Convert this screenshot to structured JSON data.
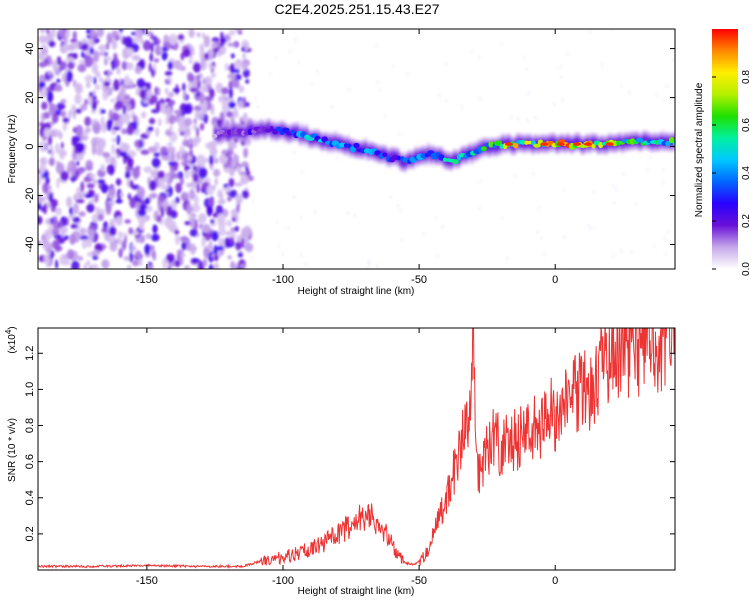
{
  "chart_data": [
    {
      "type": "heatmap",
      "title": "C2E4.2025.251.15.43.E27",
      "xlabel": "Height of straight line (km)",
      "ylabel": "Frequency (Hz)",
      "xlim": [
        -190,
        44
      ],
      "ylim": [
        -50,
        48
      ],
      "xticks": [
        -150,
        -100,
        -50,
        0
      ],
      "yticks": [
        -40,
        -20,
        0,
        20,
        40
      ],
      "colorbar": {
        "label": "Normalized spectral amplitude",
        "range": [
          0.0,
          1.0
        ],
        "ticks": [
          "0.0",
          "0.2",
          "0.4",
          "0.6",
          "0.8"
        ],
        "tick_values": [
          0.0,
          0.2,
          0.4,
          0.6,
          0.8
        ],
        "colors": [
          "#ffffff",
          "#c6a8ea",
          "#6a12d8",
          "#2a00ff",
          "#0066ff",
          "#00c8ff",
          "#00f0a0",
          "#1fe000",
          "#b4f000",
          "#ffee00",
          "#ff8800",
          "#ff0000"
        ]
      },
      "ridge": {
        "height_km": [
          -125,
          -115,
          -105,
          -98,
          -90,
          -80,
          -70,
          -62,
          -55,
          -50,
          -45,
          -40,
          -35,
          -30,
          -25,
          -18,
          -10,
          0,
          10,
          20,
          30,
          44
        ],
        "frequency_hz": [
          5,
          6,
          7,
          6,
          4,
          1,
          -1,
          -4,
          -6,
          -4,
          -3,
          -6,
          -5,
          -2,
          0,
          1,
          1,
          1,
          1,
          1,
          2,
          2
        ],
        "amplitude": [
          0.15,
          0.2,
          0.3,
          0.38,
          0.45,
          0.45,
          0.42,
          0.38,
          0.35,
          0.45,
          0.5,
          0.55,
          0.5,
          0.5,
          0.6,
          0.75,
          0.8,
          0.9,
          0.85,
          0.8,
          0.6,
          0.6
        ]
      },
      "noise_region_km": [
        -190,
        -112
      ]
    },
    {
      "type": "line",
      "xlabel": "Height of straight line (km)",
      "ylabel": "SNR (10 * v/v)",
      "y_multiplier_label": "(x10",
      "y_multiplier_exp": "4",
      "y_multiplier_close": ")",
      "xlim": [
        -190,
        44
      ],
      "ylim": [
        0,
        1.34
      ],
      "xticks": [
        -150,
        -100,
        -50,
        0
      ],
      "yticks": [
        0.2,
        0.4,
        0.6,
        0.8,
        1.0,
        1.2
      ],
      "ytick_labels": [
        "0.2",
        "0.4",
        "0.6",
        "0.8",
        "1.0",
        "1.2"
      ],
      "series": [
        {
          "name": "SNR",
          "color": "#ee3333",
          "x": [
            -190,
            -170,
            -150,
            -130,
            -115,
            -108,
            -100,
            -95,
            -90,
            -85,
            -80,
            -75,
            -72,
            -68,
            -65,
            -62,
            -58,
            -55,
            -52,
            -50,
            -47,
            -45,
            -42,
            -40,
            -38,
            -36,
            -34,
            -32,
            -31,
            -30,
            -29,
            -28,
            -26,
            -24,
            -22,
            -20,
            -17,
            -14,
            -10,
            -6,
            -2,
            0,
            3,
            6,
            9,
            12,
            15,
            18,
            20,
            22,
            25,
            30,
            35,
            40,
            44
          ],
          "y": [
            0.02,
            0.02,
            0.025,
            0.02,
            0.02,
            0.05,
            0.07,
            0.09,
            0.12,
            0.15,
            0.2,
            0.25,
            0.3,
            0.3,
            0.26,
            0.2,
            0.08,
            0.04,
            0.03,
            0.05,
            0.1,
            0.2,
            0.3,
            0.4,
            0.5,
            0.6,
            0.72,
            0.8,
            0.95,
            1.25,
            0.6,
            0.55,
            0.62,
            0.7,
            0.75,
            0.68,
            0.7,
            0.72,
            0.75,
            0.8,
            0.88,
            0.85,
            0.9,
            0.95,
            0.98,
            1.0,
            1.05,
            1.12,
            1.2,
            1.16,
            1.2,
            1.25,
            1.27,
            1.29,
            1.3
          ]
        }
      ]
    }
  ]
}
